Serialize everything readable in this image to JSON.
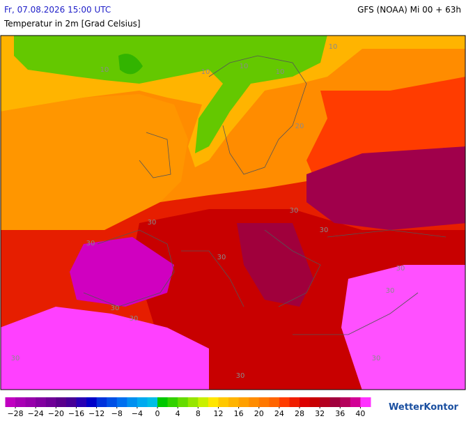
{
  "header": {
    "datetime": "Fr, 07.08.2026 15:00 UTC",
    "model": "GFS (NOAA) Mi 00 + 63h",
    "title": "Temperatur in 2m [Grad Celsius]"
  },
  "map": {
    "contour_labels": [
      10,
      10,
      10,
      10,
      10,
      20,
      30,
      30,
      30,
      30,
      30,
      30,
      30,
      30,
      30,
      30,
      30,
      30
    ]
  },
  "colorbar": {
    "lim": [
      -30,
      42
    ],
    "colors": [
      "#c000c0",
      "#a800b4",
      "#9600aa",
      "#8200a0",
      "#6e0096",
      "#5a008c",
      "#460096",
      "#2800b4",
      "#0000c8",
      "#0032dc",
      "#0050e6",
      "#0070f0",
      "#0090f0",
      "#00aaf0",
      "#00bee6",
      "#00c800",
      "#32d200",
      "#64dc00",
      "#96e600",
      "#c8f000",
      "#ffe600",
      "#ffc800",
      "#ffb400",
      "#ffa000",
      "#ff8c00",
      "#ff7800",
      "#ff6400",
      "#ff3c00",
      "#f01e00",
      "#dc0000",
      "#c80000",
      "#b4001e",
      "#a0003c",
      "#b4005a",
      "#d20096",
      "#ff32ff"
    ],
    "ticks": [
      {
        "value": -28,
        "label": "−28"
      },
      {
        "value": -24,
        "label": "−24"
      },
      {
        "value": -20,
        "label": "−20"
      },
      {
        "value": -16,
        "label": "−16"
      },
      {
        "value": -12,
        "label": "−12"
      },
      {
        "value": -8,
        "label": "−8"
      },
      {
        "value": -4,
        "label": "−4"
      },
      0,
      4,
      8,
      12,
      16,
      20,
      24,
      28,
      32,
      36,
      40
    ]
  },
  "logo": "WetterKontor"
}
